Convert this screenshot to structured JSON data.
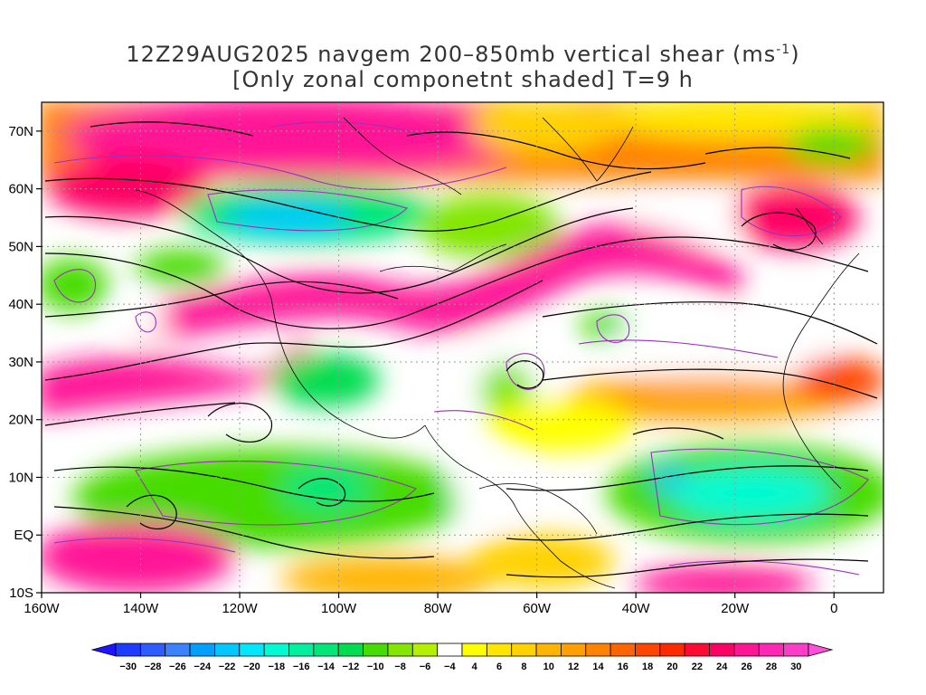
{
  "title": {
    "line1_pre": "12Z29AUG2025 navgem 200–850mb vertical shear (ms",
    "line1_sup": "-1",
    "line1_post": ")",
    "line2": "[Only zonal componetnt shaded] T=9 h"
  },
  "axes": {
    "lat_labels": [
      "70N",
      "60N",
      "50N",
      "40N",
      "30N",
      "20N",
      "10N",
      "EQ",
      "10S"
    ],
    "lat_values": [
      70,
      60,
      50,
      40,
      30,
      20,
      10,
      0,
      -10
    ],
    "lon_labels": [
      "160W",
      "140W",
      "120W",
      "100W",
      "80W",
      "60W",
      "40W",
      "20W",
      "0"
    ],
    "lon_values": [
      -160,
      -140,
      -120,
      -100,
      -80,
      -60,
      -40,
      -20,
      0
    ],
    "lon_range": [
      -160,
      10
    ],
    "lat_range": [
      -10,
      75
    ]
  },
  "colorbar": {
    "labels": [
      "-30",
      "-28",
      "-26",
      "-24",
      "-22",
      "-20",
      "-18",
      "-16",
      "-14",
      "-12",
      "-10",
      "-8",
      "-6",
      "-4",
      "4",
      "6",
      "8",
      "10",
      "12",
      "14",
      "16",
      "18",
      "20",
      "22",
      "24",
      "26",
      "28",
      "30"
    ],
    "colors": [
      "#1e3cff",
      "#2e5cff",
      "#3c82ff",
      "#00a0ff",
      "#00c8ff",
      "#00e6ff",
      "#00fad2",
      "#00f0a0",
      "#00e678",
      "#00dc50",
      "#46dc00",
      "#82e600",
      "#b4f000",
      "#ffffff",
      "#ffff00",
      "#ffe600",
      "#ffd200",
      "#ffb400",
      "#ffa000",
      "#ff8200",
      "#ff6400",
      "#ff4600",
      "#ff2800",
      "#ff0a32",
      "#ff0064",
      "#ff1496",
      "#ff28b4",
      "#ff3cc8"
    ],
    "end_low": "#1e14ff",
    "end_high": "#ff50dc"
  }
}
